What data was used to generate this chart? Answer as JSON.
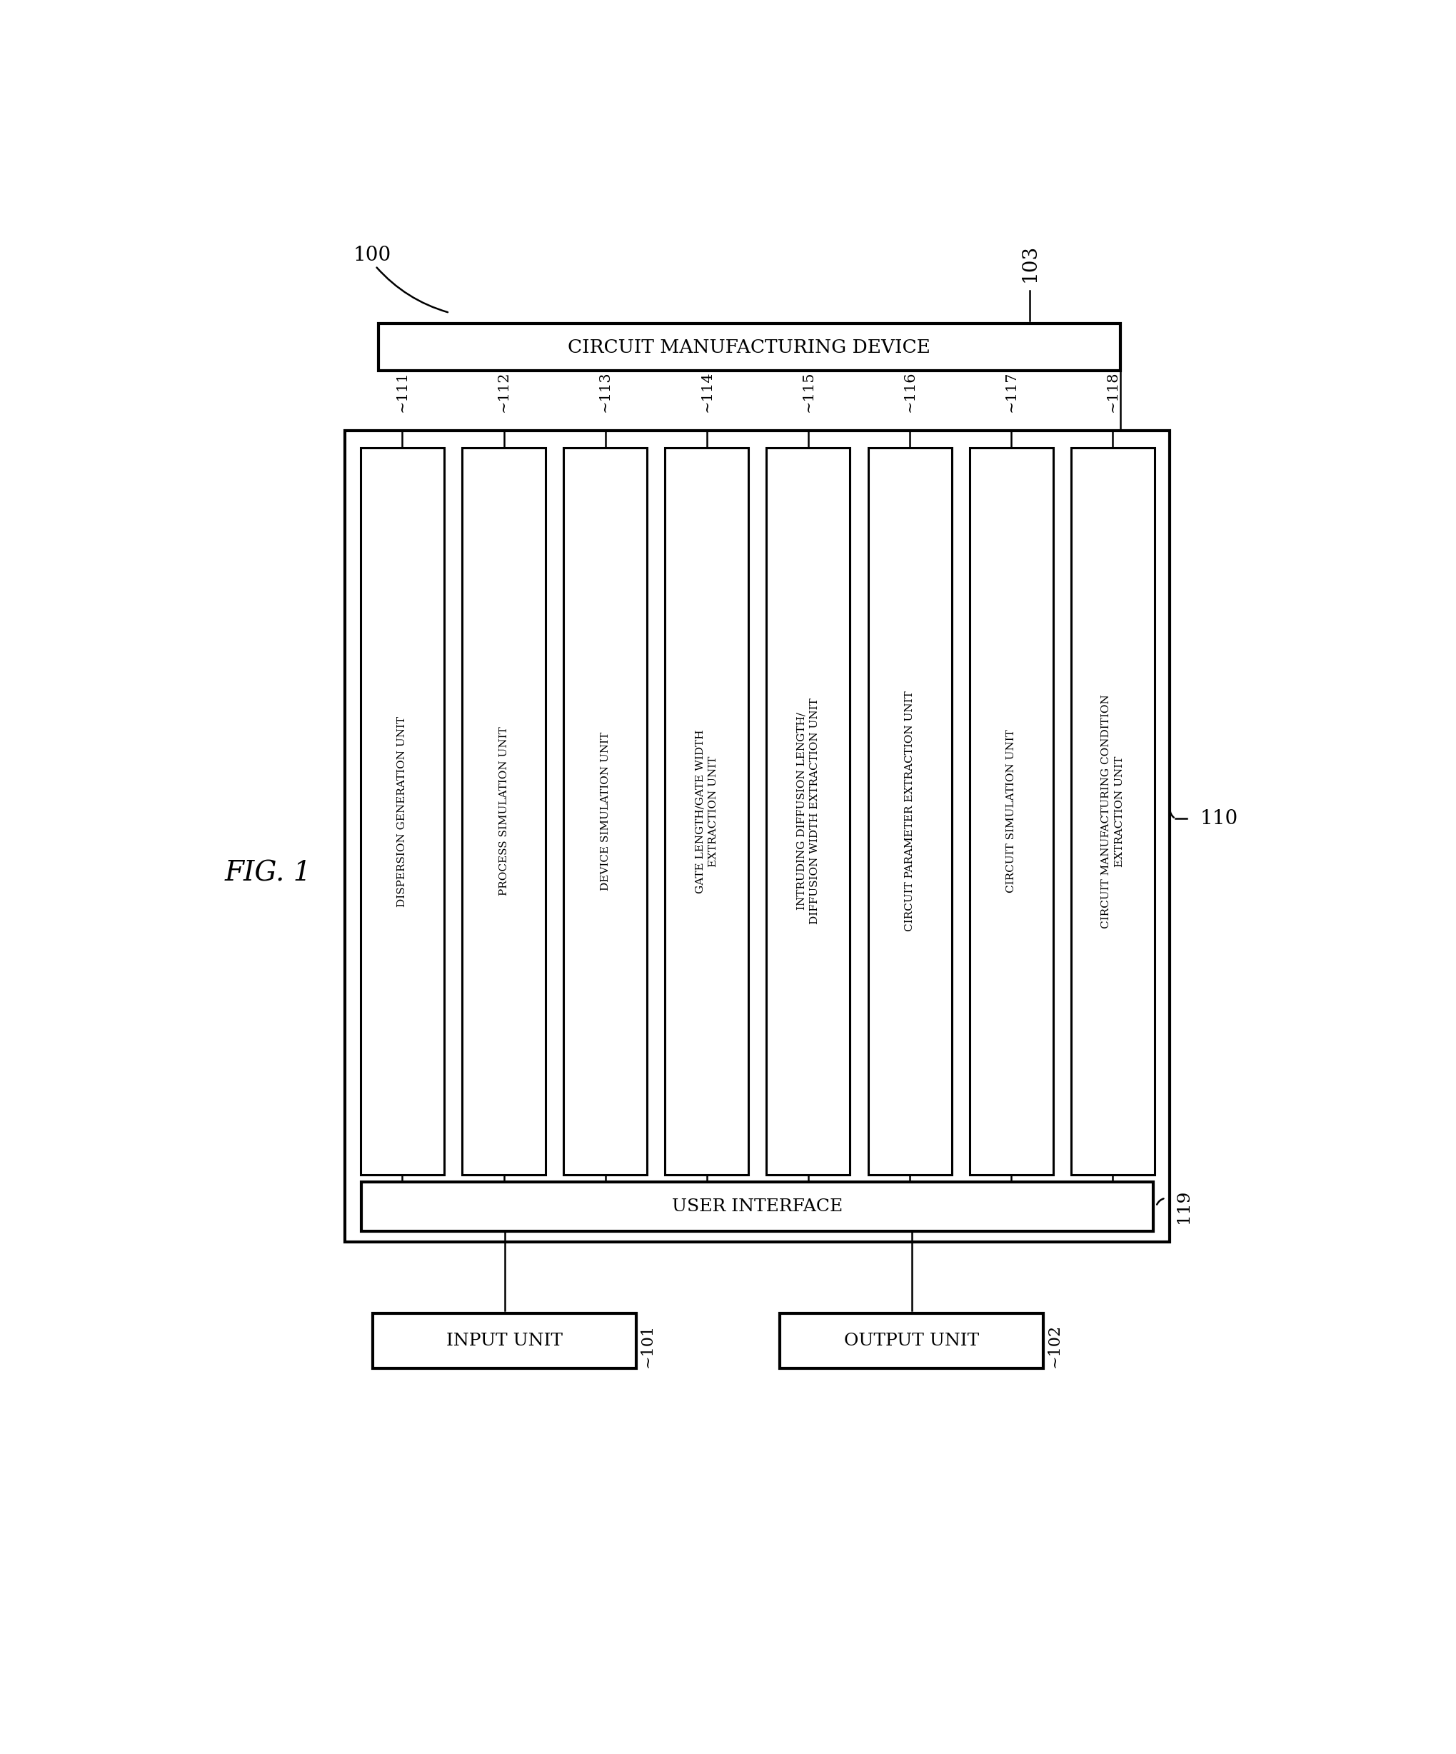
{
  "fig_label": "FIG. 1",
  "bg_color": "#ffffff",
  "line_color": "#000000",
  "box_fill": "#ffffff",
  "ref_100": "100",
  "ref_101": "101",
  "ref_102": "102",
  "ref_103": "103",
  "ref_110": "110",
  "ref_119": "119",
  "cmd_box_label": "CIRCUIT MANUFACTURING DEVICE",
  "ui_label": "USER INTERFACE",
  "input_label": "INPUT UNIT",
  "output_label": "OUTPUT UNIT",
  "modules": [
    {
      "ref": "111",
      "label": "DISPERSION GENERATION UNIT"
    },
    {
      "ref": "112",
      "label": "PROCESS SIMULATION UNIT"
    },
    {
      "ref": "113",
      "label": "DEVICE SIMULATION UNIT"
    },
    {
      "ref": "114",
      "label": "GATE LENGTH/GATE WIDTH\nEXTRACTION UNIT"
    },
    {
      "ref": "115",
      "label": "INTRUDING DIFFUSION LENGTH/\nDIFFUSION WIDTH EXTRACTION UNIT"
    },
    {
      "ref": "116",
      "label": "CIRCUIT PARAMETER EXTRACTION UNIT"
    },
    {
      "ref": "117",
      "label": "CIRCUIT SIMULATION UNIT"
    },
    {
      "ref": "118",
      "label": "CIRCUIT MANUFACTURING CONDITION\nEXTRACTION UNIT"
    }
  ]
}
